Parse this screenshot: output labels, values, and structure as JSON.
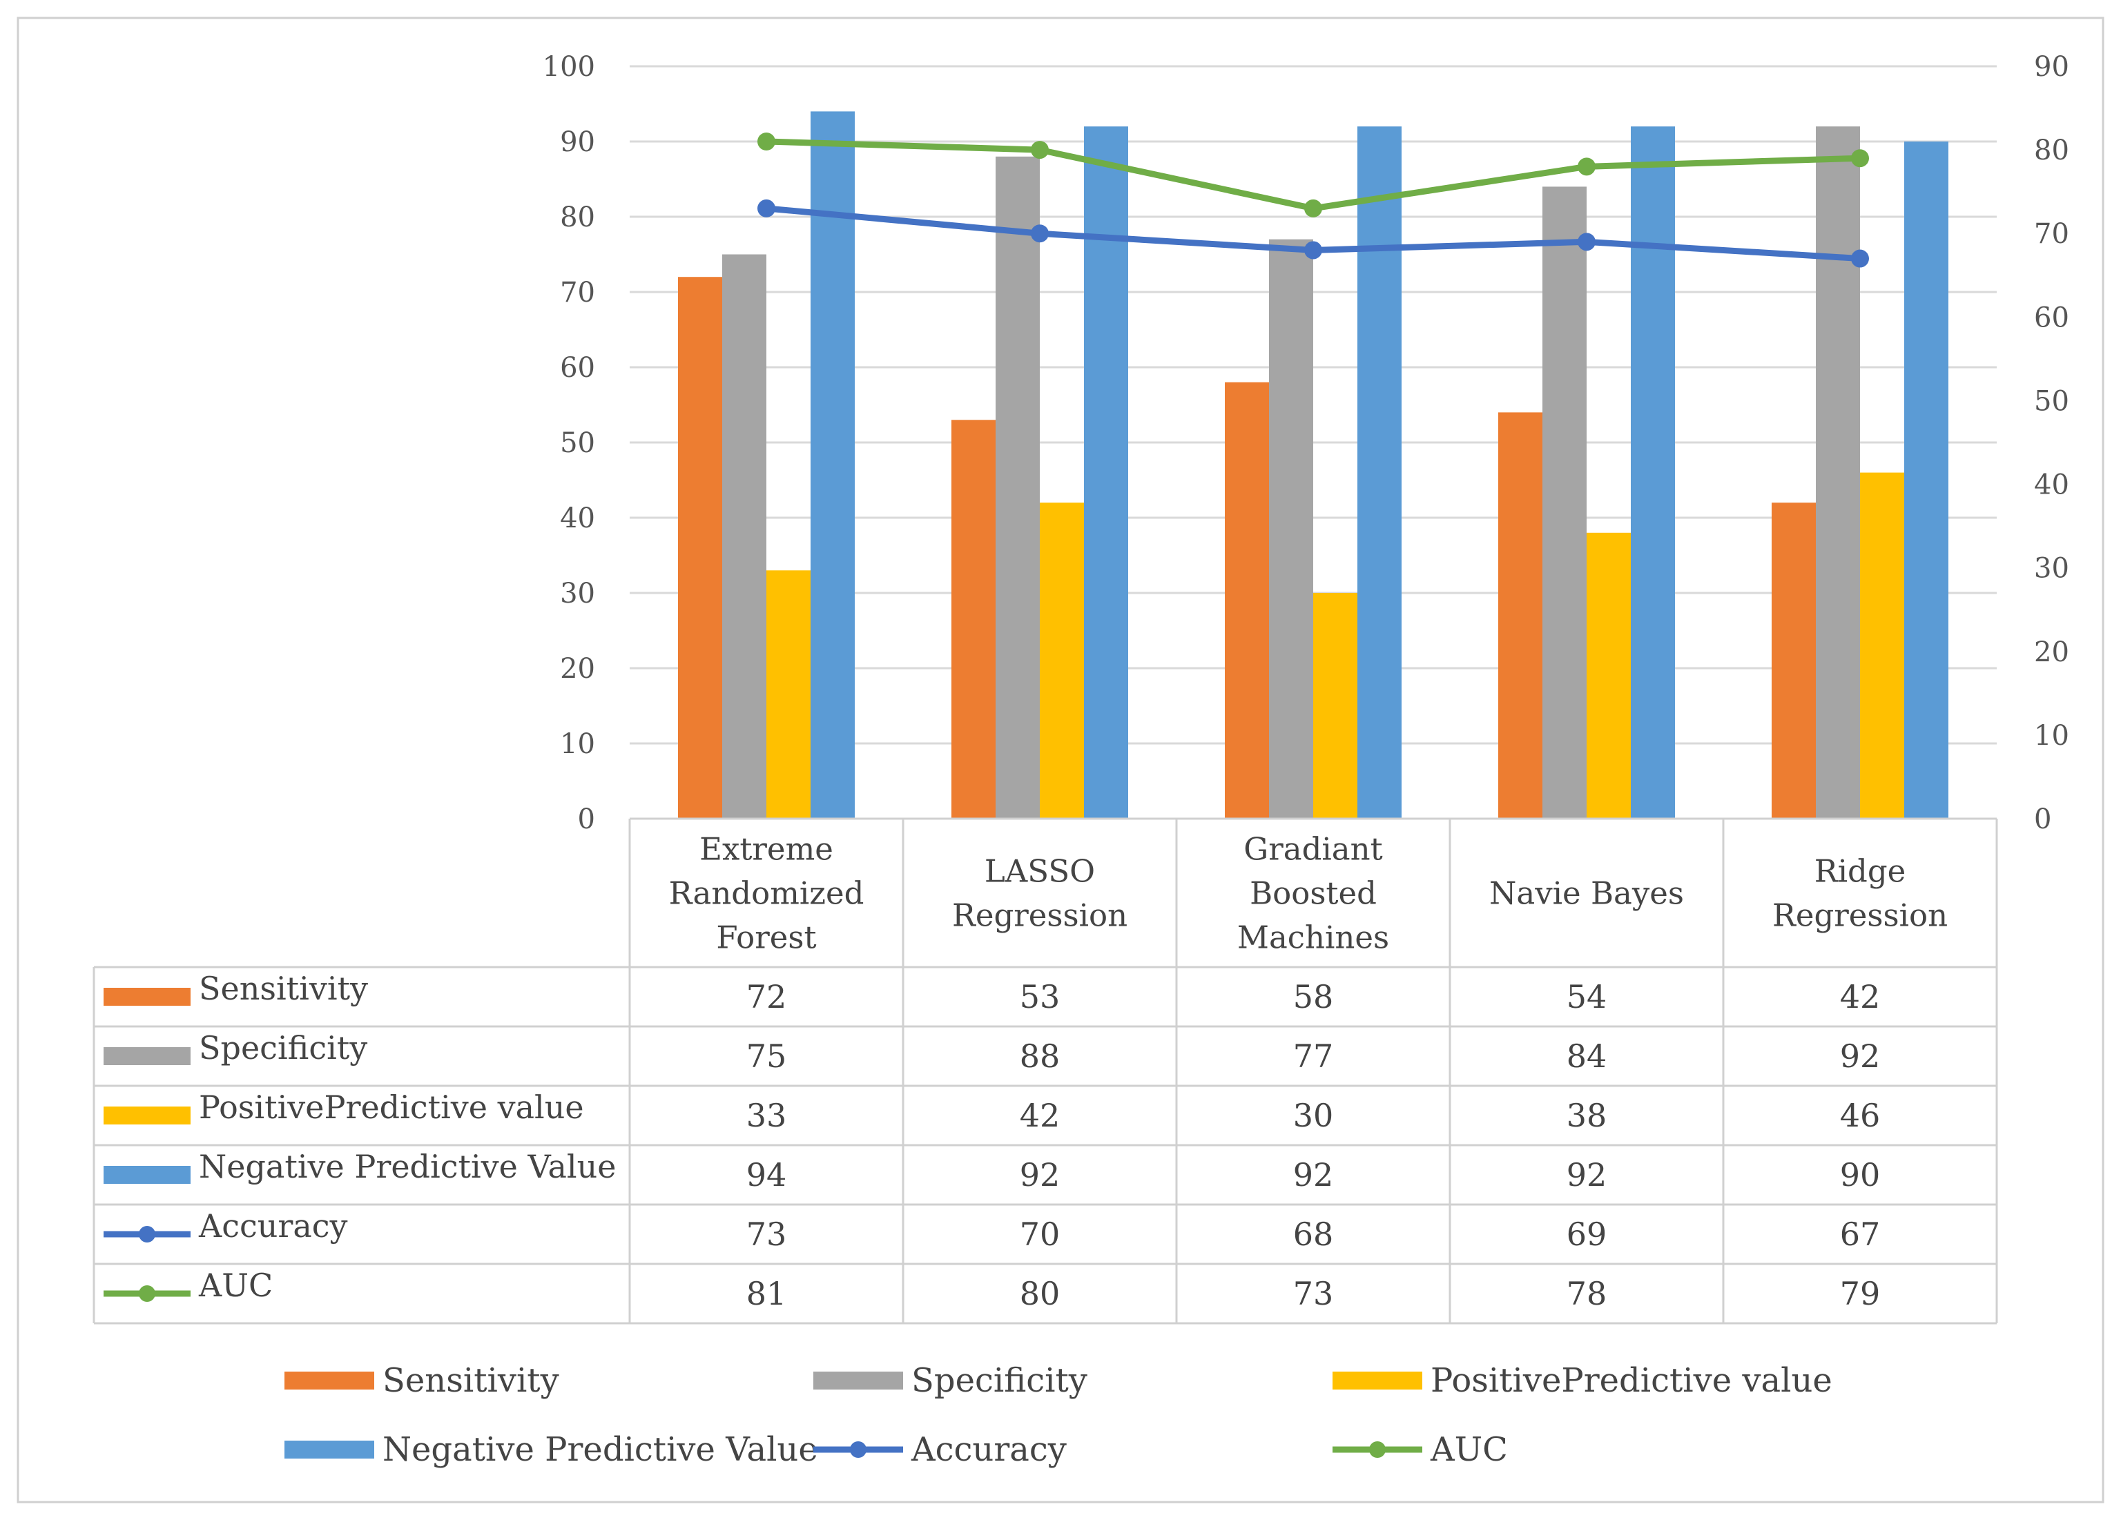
{
  "chart_data": {
    "type": "bar",
    "categories": [
      [
        "Extreme",
        "Randomized",
        "Forest"
      ],
      [
        "LASSO",
        "Regression"
      ],
      [
        "Gradiant",
        "Boosted",
        "Machines"
      ],
      [
        "Navie Bayes"
      ],
      [
        "Ridge",
        "Regression"
      ]
    ],
    "left_axis": {
      "ylim": [
        0,
        100
      ],
      "ticks": [
        "0",
        "10",
        "20",
        "30",
        "40",
        "50",
        "60",
        "70",
        "80",
        "90",
        "100"
      ]
    },
    "right_axis": {
      "ylim": [
        0,
        90
      ],
      "ticks": [
        "0",
        "10",
        "20",
        "30",
        "40",
        "50",
        "60",
        "70",
        "80",
        "90"
      ]
    },
    "series": [
      {
        "name": "Sensitivity",
        "kind": "bar",
        "axis": "left",
        "color": "#ED7D31",
        "values": [
          72,
          53,
          58,
          54,
          42
        ],
        "labels": [
          "72",
          "53",
          "58",
          "54",
          "42"
        ]
      },
      {
        "name": "Specificity",
        "kind": "bar",
        "axis": "left",
        "color": "#A5A5A5",
        "values": [
          75,
          88,
          77,
          84,
          92
        ],
        "labels": [
          "75",
          "88",
          "77",
          "84",
          "92"
        ]
      },
      {
        "name": "PositivePredictive value",
        "kind": "bar",
        "axis": "left",
        "color": "#FFC000",
        "values": [
          33,
          42,
          30,
          38,
          46
        ],
        "labels": [
          "33",
          "42",
          "30",
          "38",
          "46"
        ]
      },
      {
        "name": "Negative Predictive Value",
        "kind": "bar",
        "axis": "left",
        "color": "#5B9BD5",
        "values": [
          94,
          92,
          92,
          92,
          90
        ],
        "labels": [
          "94",
          "92",
          "92",
          "92",
          "90"
        ]
      },
      {
        "name": "Accuracy",
        "kind": "line",
        "axis": "right",
        "color": "#4472C4",
        "values": [
          73,
          70,
          68,
          69,
          67
        ],
        "labels": [
          "73",
          "70",
          "68",
          "69",
          "67"
        ]
      },
      {
        "name": "AUC",
        "kind": "line",
        "axis": "right",
        "color": "#70AD47",
        "values": [
          81,
          80,
          73,
          78,
          79
        ],
        "labels": [
          "81",
          "80",
          "73",
          "78",
          "79"
        ]
      }
    ],
    "legend": {
      "position": "bottom",
      "rows": [
        [
          "Sensitivity",
          "Specificity",
          "PositivePredictive value"
        ],
        [
          "Negative Predictive Value",
          "Accuracy",
          "AUC"
        ]
      ]
    },
    "data_table": true,
    "grid": true
  }
}
